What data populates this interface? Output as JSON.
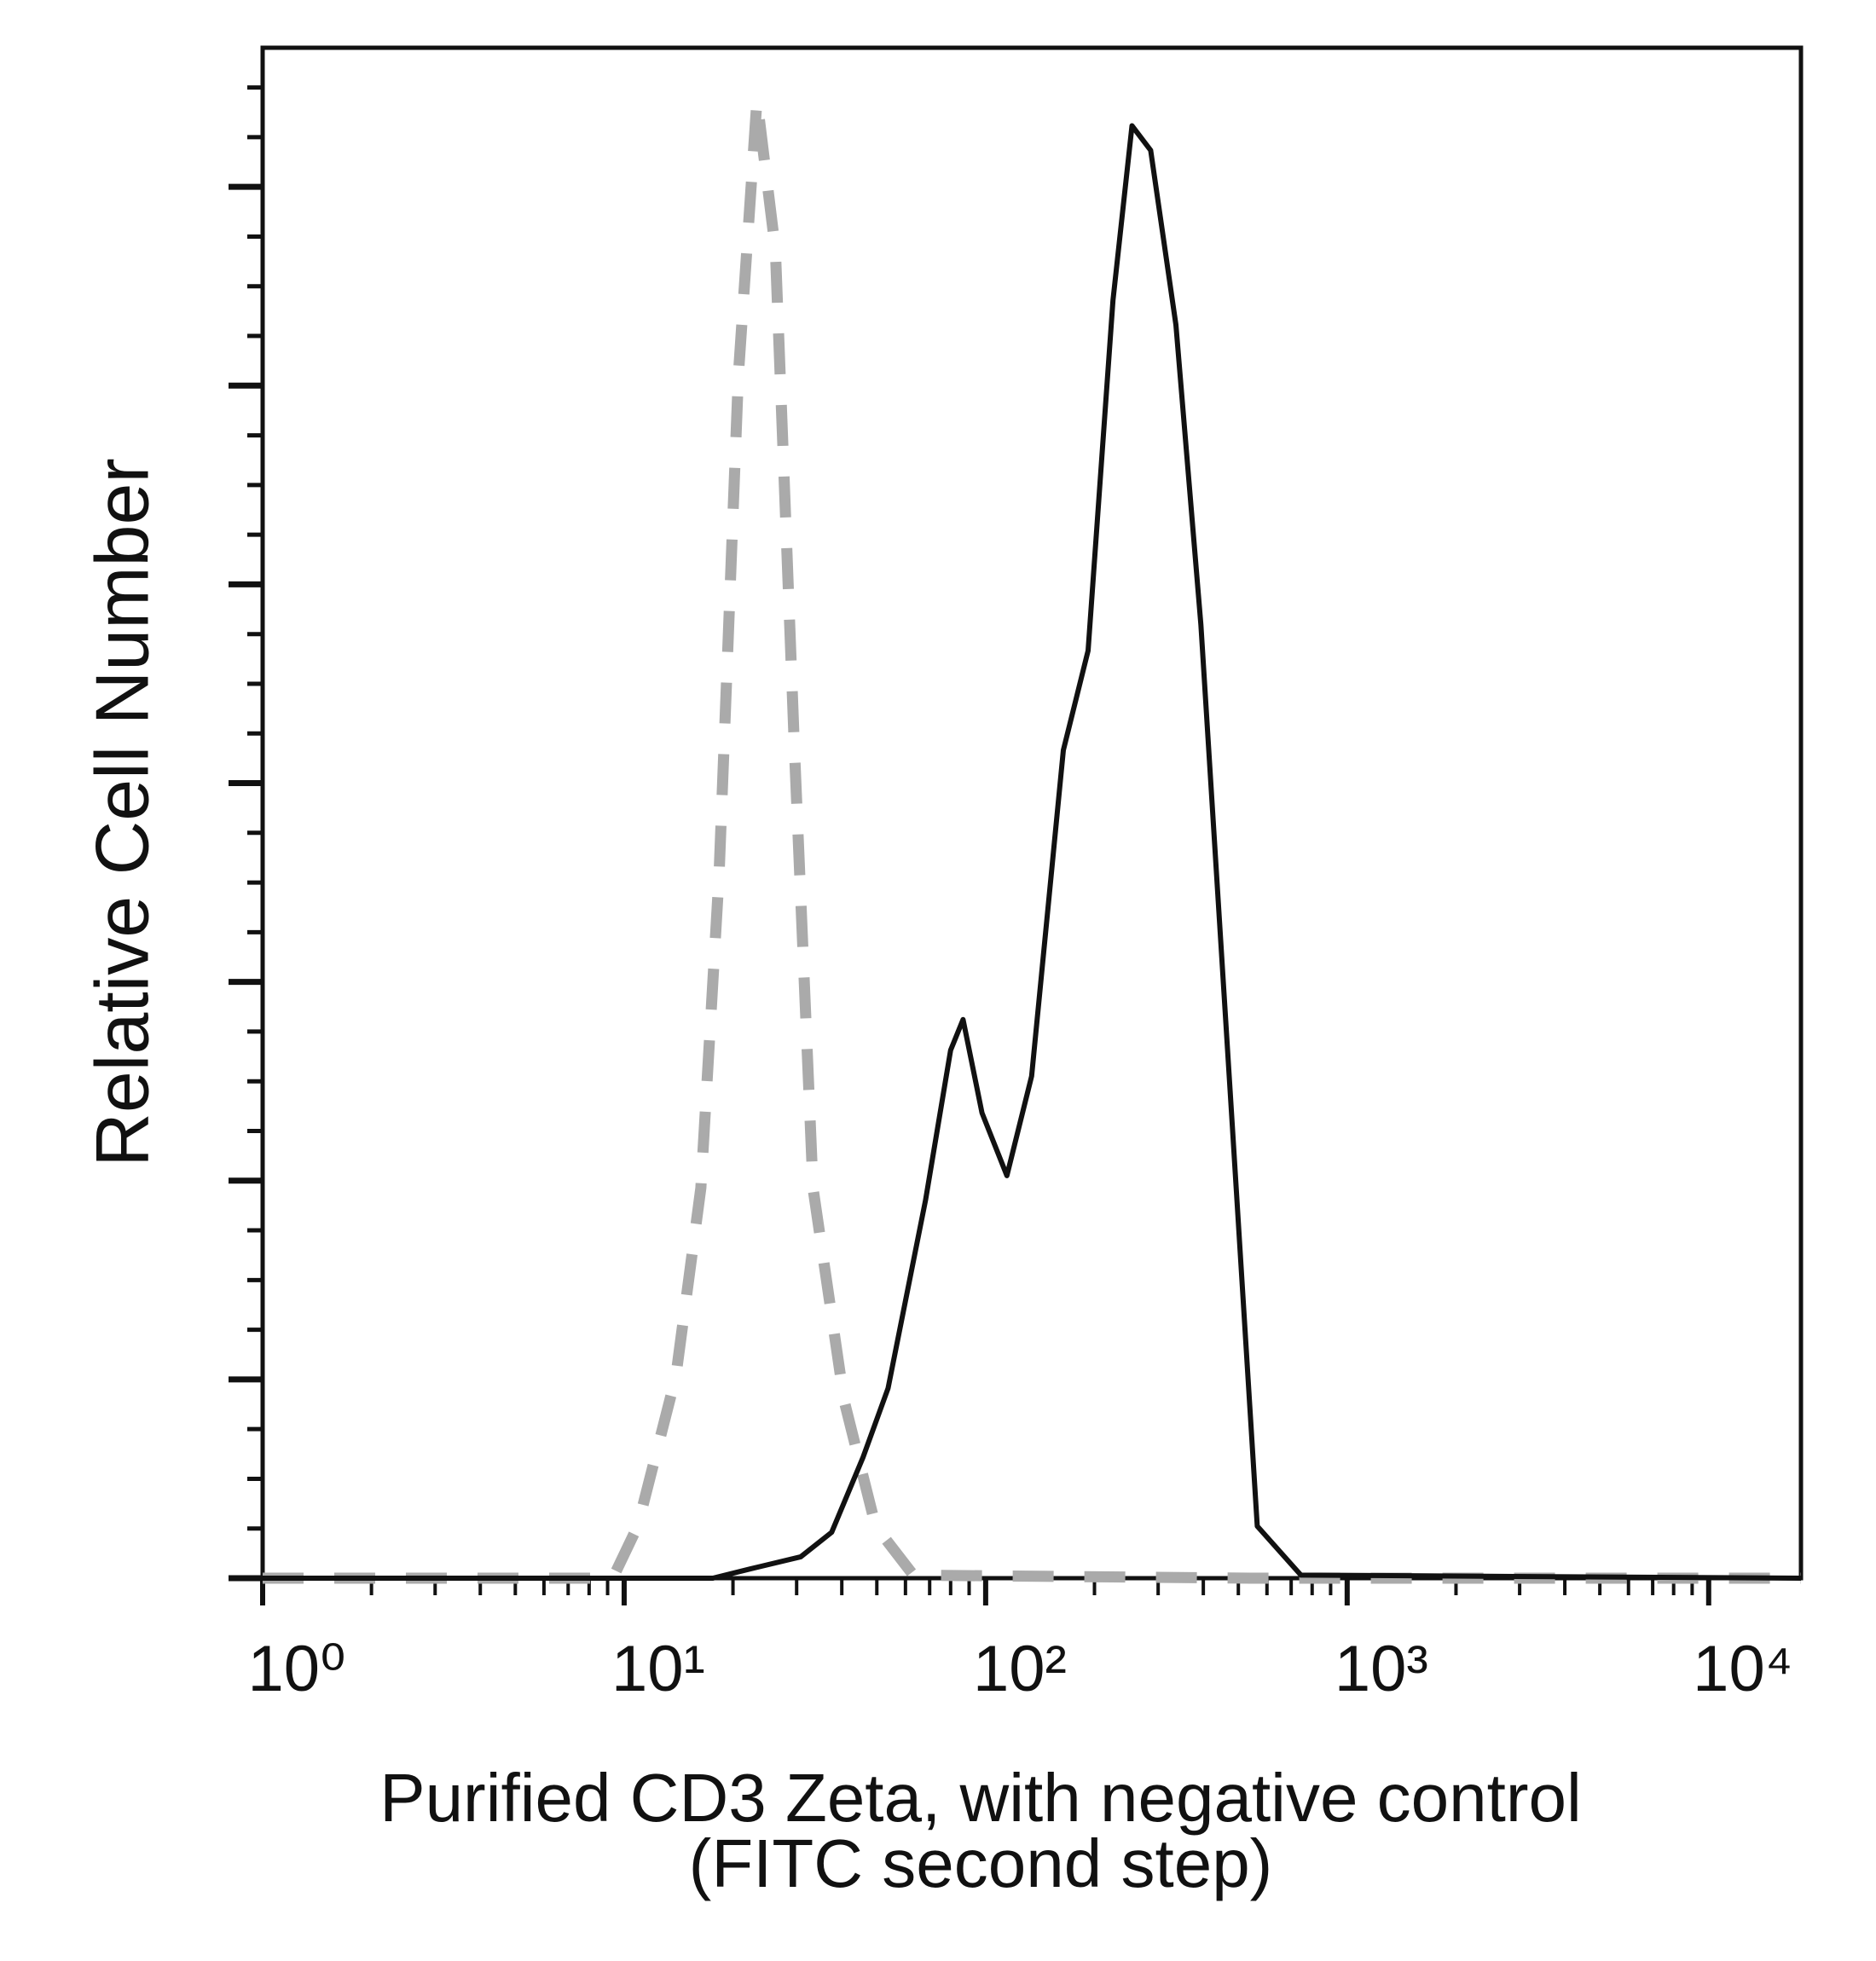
{
  "chart_data": {
    "type": "line",
    "xlabel": [
      "Purified CD3 Zeta, with negative control",
      "(FITC second step)"
    ],
    "ylabel": "Relative Cell Number",
    "xlog": true,
    "xlim": [
      1,
      18000
    ],
    "xticks": [
      {
        "value": 1,
        "label": "10⁰"
      },
      {
        "value": 10,
        "label": "10¹"
      },
      {
        "value": 100,
        "label": "10²"
      },
      {
        "value": 1000,
        "label": "10³"
      },
      {
        "value": 10000,
        "label": "10⁴"
      }
    ],
    "ylim": [
      0,
      100
    ],
    "series": [
      {
        "color": "#111111",
        "style": "solid",
        "x": [
          1,
          17.6,
          22.3,
          30.8,
          37.5,
          45.8,
          53.7,
          68.2,
          80.0,
          86.6,
          97.7,
          114.5,
          134,
          164,
          192,
          225,
          254,
          286,
          336,
          394,
          481,
          564,
          745,
          18000
        ],
        "values": [
          0,
          0,
          0.6,
          1.4,
          3.0,
          7.9,
          12.4,
          24.7,
          34.5,
          36.5,
          30.4,
          26.3,
          32.8,
          54.1,
          60.6,
          83.5,
          94.9,
          93.3,
          81.9,
          62.3,
          29.6,
          3.4,
          0.2,
          0
        ]
      },
      {
        "color": "#aaaaaa",
        "style": "dashed",
        "x": [
          1,
          9.3,
          10.9,
          13.9,
          16.3,
          18.3,
          20.7,
          23.3,
          26.2,
          29.6,
          33.3,
          40.6,
          49.6,
          63.1,
          540,
          18000
        ],
        "values": [
          0,
          0,
          3.4,
          13.2,
          25.5,
          45.9,
          78.6,
          96.6,
          86.8,
          54.1,
          25.5,
          11.6,
          3.4,
          0.2,
          0,
          0
        ]
      }
    ]
  }
}
